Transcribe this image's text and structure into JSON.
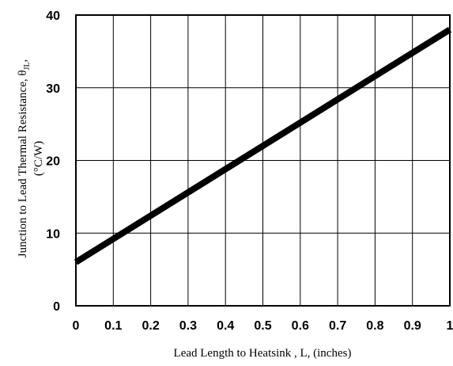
{
  "chart_data": {
    "type": "line",
    "xlabel": "Lead Length to Heatsink , L, (inches)",
    "ylabel_line1": "Junction to Lead Thermal Resistance, θ",
    "ylabel_subscript": "JL",
    "ylabel_suffix": ",",
    "ylabel_line2": "(°C/W)",
    "xlim": [
      0,
      1
    ],
    "ylim": [
      0,
      40
    ],
    "x_ticks": [
      "0",
      "0.1",
      "0.2",
      "0.3",
      "0.4",
      "0.5",
      "0.6",
      "0.7",
      "0.8",
      "0.9",
      "1"
    ],
    "y_ticks": [
      "0",
      "10",
      "20",
      "30",
      "40"
    ],
    "grid": true,
    "series": [
      {
        "x": [
          0,
          1
        ],
        "y": [
          6,
          38
        ]
      }
    ]
  }
}
